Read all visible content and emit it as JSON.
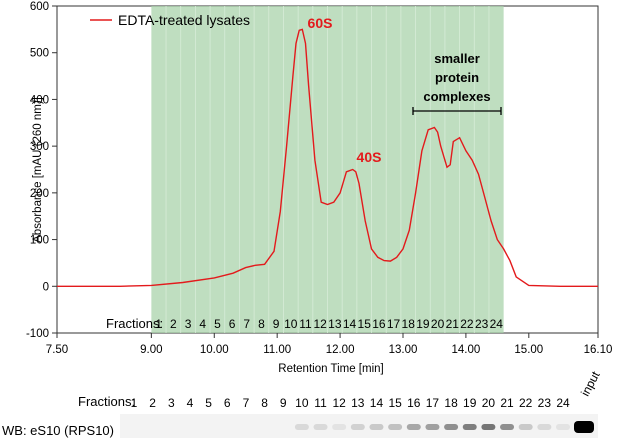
{
  "chart_data": {
    "type": "line",
    "legend": "EDTA-treated lysates",
    "xlabel": "Retention Time [min]",
    "ylabel": "Absorbance [mAU (260 nm)]",
    "xlim": [
      7.5,
      16.1
    ],
    "ylim": [
      -100,
      600
    ],
    "x_ticks": [
      "7.50",
      "9.00",
      "10.00",
      "11.00",
      "12.00",
      "13.00",
      "14.00",
      "15.00",
      "16.10"
    ],
    "y_ticks": [
      "-100",
      "0",
      "100",
      "200",
      "300",
      "400",
      "500",
      "600"
    ],
    "series": [
      {
        "name": "EDTA-treated lysates",
        "color": "#e31a1c",
        "x": [
          7.5,
          8.5,
          9.0,
          9.5,
          10.0,
          10.3,
          10.5,
          10.65,
          10.8,
          10.95,
          11.05,
          11.15,
          11.25,
          11.3,
          11.35,
          11.4,
          11.45,
          11.5,
          11.6,
          11.7,
          11.8,
          11.9,
          12.0,
          12.1,
          12.2,
          12.25,
          12.3,
          12.4,
          12.5,
          12.6,
          12.7,
          12.8,
          12.9,
          13.0,
          13.1,
          13.2,
          13.3,
          13.4,
          13.5,
          13.55,
          13.6,
          13.7,
          13.75,
          13.8,
          13.9,
          14.0,
          14.1,
          14.2,
          14.3,
          14.4,
          14.5,
          14.6,
          14.7,
          14.8,
          15.0,
          15.5,
          16.1
        ],
        "y": [
          0,
          0,
          2,
          8,
          18,
          28,
          40,
          45,
          47,
          75,
          160,
          300,
          450,
          520,
          548,
          550,
          520,
          430,
          270,
          180,
          175,
          180,
          200,
          245,
          250,
          245,
          220,
          140,
          80,
          62,
          55,
          54,
          62,
          80,
          120,
          200,
          290,
          335,
          340,
          330,
          300,
          255,
          260,
          310,
          318,
          290,
          270,
          240,
          190,
          140,
          100,
          80,
          55,
          20,
          2,
          0,
          0
        ]
      }
    ],
    "annotations": [
      "60S",
      "40S",
      "smaller protein complexes"
    ],
    "fractions_label": "Fractions:",
    "fractions": [
      "1",
      "2",
      "3",
      "4",
      "5",
      "6",
      "7",
      "8",
      "9",
      "10",
      "11",
      "12",
      "13",
      "14",
      "15",
      "16",
      "17",
      "18",
      "19",
      "20",
      "21",
      "22",
      "23",
      "24"
    ],
    "shaded_region_x": [
      9.0,
      14.6
    ],
    "shaded_color": "#a9d3ab",
    "grid": false
  },
  "western_blot": {
    "fractions_label": "Fractions:",
    "lanes": [
      "1",
      "2",
      "3",
      "4",
      "5",
      "6",
      "7",
      "8",
      "9",
      "10",
      "11",
      "12",
      "13",
      "14",
      "15",
      "16",
      "17",
      "18",
      "19",
      "20",
      "21",
      "22",
      "23",
      "24"
    ],
    "input_label": "input",
    "label": "WB: eS10 (RPS10)"
  }
}
